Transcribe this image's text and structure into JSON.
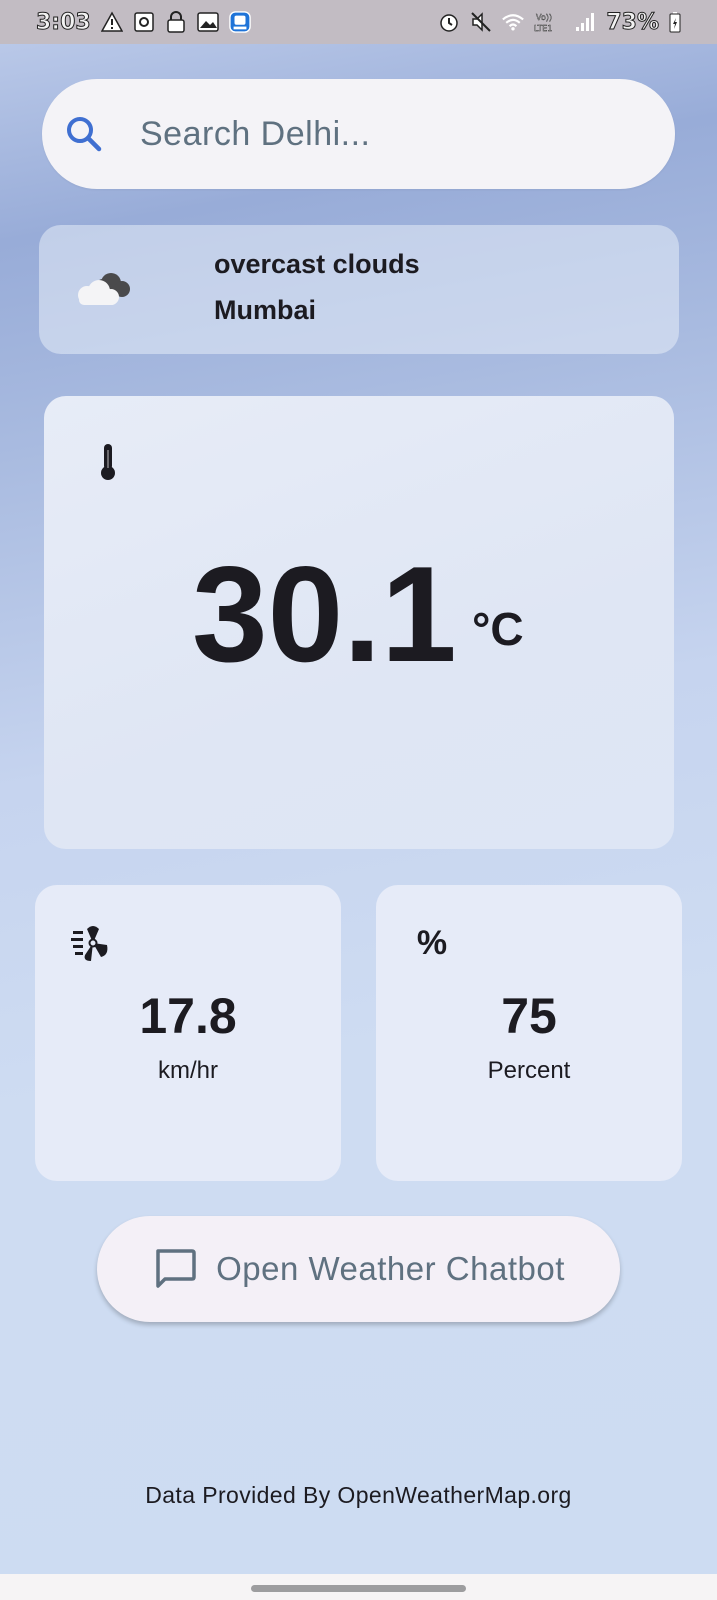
{
  "status_bar": {
    "time": "3:03",
    "battery": "73%",
    "left_icons": [
      "warning-icon",
      "settings-app-icon",
      "lock-icon",
      "gallery-icon",
      "app-notification-icon"
    ],
    "right_icons": [
      "alarm-icon",
      "mute-icon",
      "wifi-icon",
      "volte-icon",
      "signal-icon",
      "battery-icon"
    ]
  },
  "search": {
    "placeholder": "Search Delhi...",
    "icon": "search-icon",
    "icon_color": "#3f6fd1"
  },
  "location": {
    "icon": "cloud-icon",
    "condition": "overcast clouds",
    "city": "Mumbai"
  },
  "temperature": {
    "icon": "thermometer-icon",
    "value": "30.1",
    "unit": "°C"
  },
  "wind": {
    "icon": "wind-icon",
    "value": "17.8",
    "unit": "km/hr"
  },
  "humidity": {
    "icon": "percent-icon",
    "icon_text": "%",
    "value": "75",
    "unit": "Percent"
  },
  "chatbot_button": {
    "icon": "chat-icon",
    "label": "Open Weather Chatbot"
  },
  "footer": {
    "text": "Data Provided By OpenWeatherMap.org"
  },
  "colors": {
    "accent": "#3f6fd1",
    "text_primary": "#1c1b21",
    "text_muted": "#5f7180",
    "card_bg": "#e6ebf8"
  }
}
